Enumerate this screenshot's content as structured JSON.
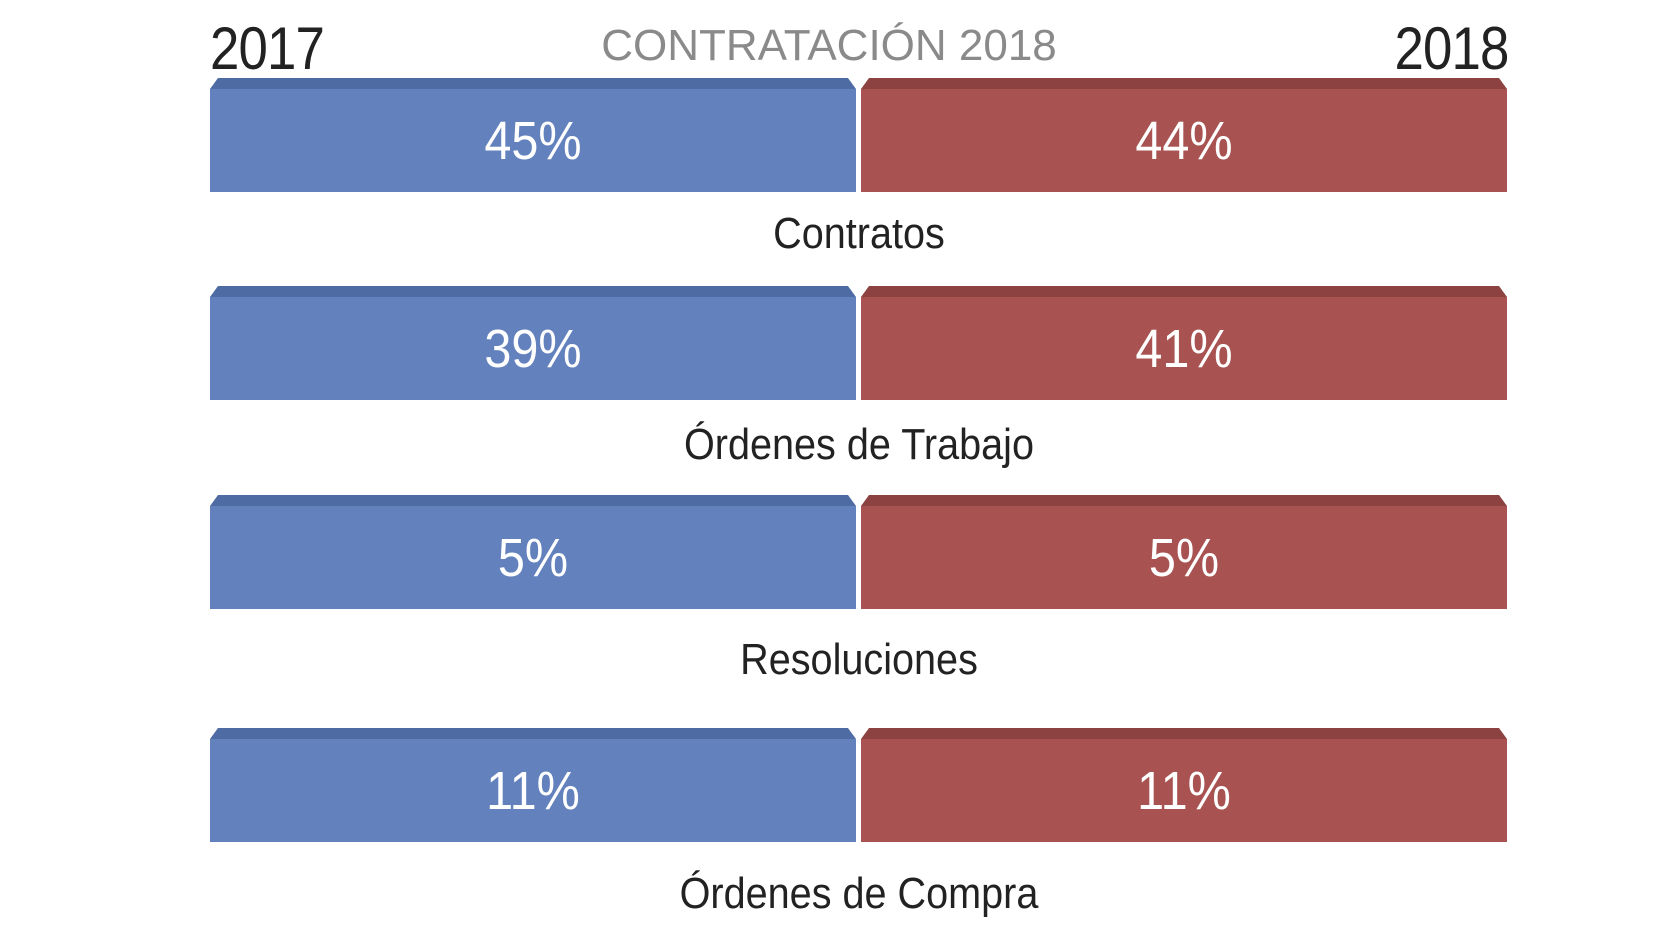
{
  "chart_data": {
    "type": "bar",
    "title": "CONTRATACIÓN 2018",
    "series": [
      {
        "name": "2017",
        "values": [
          "45%",
          "39%",
          "5%",
          "11%"
        ]
      },
      {
        "name": "2018",
        "values": [
          "44%",
          "41%",
          "5%",
          "11%"
        ]
      }
    ],
    "categories": [
      "Contratos",
      "Órdenes de Trabajo",
      "Resoluciones",
      "Órdenes de Compra"
    ]
  },
  "colors": {
    "series_2017": "#6281BD",
    "series_2017_top": "#4E6BA3",
    "series_2018": "#A85351",
    "series_2018_top": "#8C4240"
  }
}
